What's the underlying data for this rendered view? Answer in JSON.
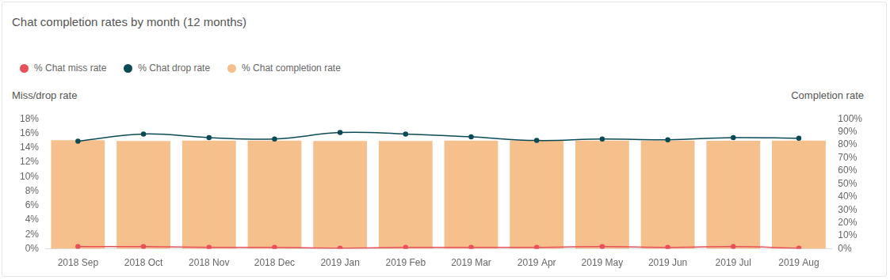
{
  "chart_data": {
    "type": "bar",
    "title": "Chat completion rates by month (12 months)",
    "y_label": "Miss/drop rate",
    "y2_label": "Completion rate",
    "categories": [
      "2018 Sep",
      "2018 Oct",
      "2018 Nov",
      "2018 Dec",
      "2019 Jan",
      "2019 Feb",
      "2019 Mar",
      "2019 Apr",
      "2019 May",
      "2019 Jun",
      "2019 Jul",
      "2019 Aug"
    ],
    "series": [
      {
        "name": "% Chat miss rate",
        "type": "line",
        "marker": "circle",
        "color": "#e8505b",
        "values": [
          0.3,
          0.3,
          0.2,
          0.2,
          0.1,
          0.2,
          0.2,
          0.2,
          0.3,
          0.2,
          0.3,
          0.1
        ]
      },
      {
        "name": "% Chat drop rate",
        "type": "line",
        "marker": "circle",
        "color": "#0b4a55",
        "values": [
          14.9,
          15.9,
          15.4,
          15.2,
          16.1,
          15.9,
          15.5,
          15.0,
          15.2,
          15.1,
          15.4,
          15.3
        ]
      },
      {
        "name": "% Chat completion rate",
        "type": "bar",
        "axis": "y2",
        "color": "#f5c08c",
        "values": [
          83.5,
          83.0,
          83.3,
          83.3,
          83.0,
          83.0,
          83.2,
          83.4,
          83.3,
          83.3,
          83.1,
          83.3
        ]
      }
    ],
    "ylim": [
      0,
      18
    ],
    "yticks": [
      {
        "value": 0,
        "label": "0%"
      },
      {
        "value": 2,
        "label": "2%"
      },
      {
        "value": 4,
        "label": "4%"
      },
      {
        "value": 6,
        "label": "6%"
      },
      {
        "value": 8,
        "label": "8%"
      },
      {
        "value": 10,
        "label": "10%"
      },
      {
        "value": 12,
        "label": "12%"
      },
      {
        "value": 14,
        "label": "14%"
      },
      {
        "value": 16,
        "label": "16%"
      },
      {
        "value": 18,
        "label": "18%"
      }
    ],
    "y2lim": [
      0,
      100
    ],
    "y2ticks": [
      {
        "value": 0,
        "label": "0%"
      },
      {
        "value": 10,
        "label": "10%"
      },
      {
        "value": 20,
        "label": "20%"
      },
      {
        "value": 30,
        "label": "30%"
      },
      {
        "value": 40,
        "label": "40%"
      },
      {
        "value": 50,
        "label": "50%"
      },
      {
        "value": 60,
        "label": "60%"
      },
      {
        "value": 70,
        "label": "70%"
      },
      {
        "value": 80,
        "label": "80%"
      },
      {
        "value": 90,
        "label": "90%"
      },
      {
        "value": 100,
        "label": "100%"
      }
    ],
    "grid": false,
    "legend": "top-left"
  }
}
